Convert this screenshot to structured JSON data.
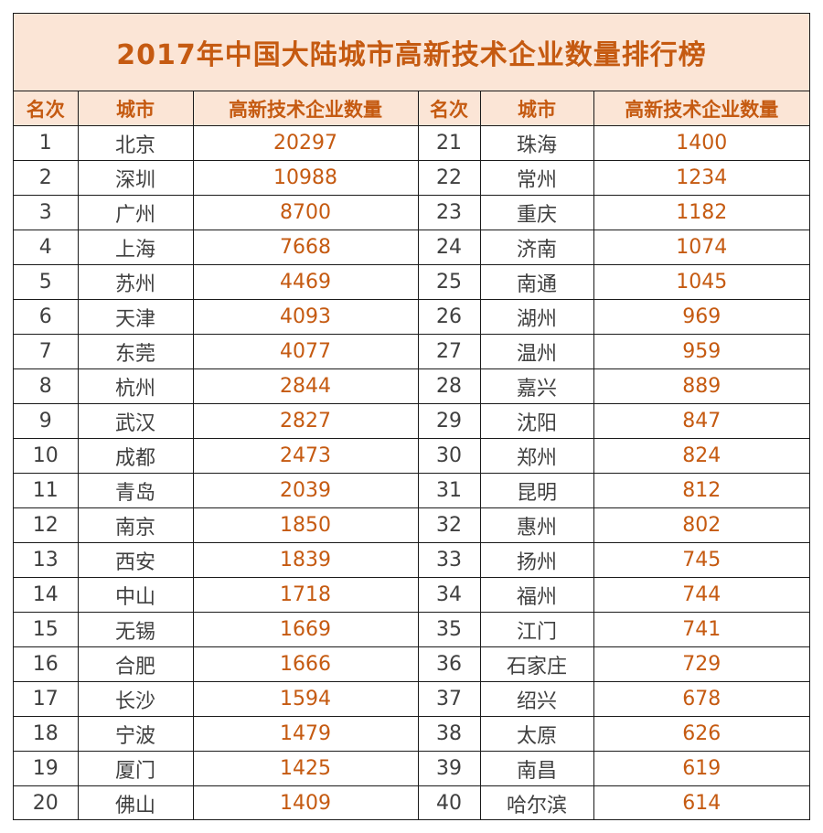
{
  "title": "2017年中国大陆城市高新技术企业数量排行榜",
  "headers": {
    "rank": "名次",
    "city": "城市",
    "count": "高新技术企业数量"
  },
  "colors": {
    "accent": "#c55a11",
    "header_bg": "#fbe5d6",
    "text": "#404040"
  },
  "chart_data": {
    "type": "table",
    "title": "2017年中国大陆城市高新技术企业数量排行榜",
    "columns": [
      "名次",
      "城市",
      "高新技术企业数量"
    ],
    "rows": [
      {
        "rank": "1",
        "city": "北京",
        "count": "20297"
      },
      {
        "rank": "2",
        "city": "深圳",
        "count": "10988"
      },
      {
        "rank": "3",
        "city": "广州",
        "count": "8700"
      },
      {
        "rank": "4",
        "city": "上海",
        "count": "7668"
      },
      {
        "rank": "5",
        "city": "苏州",
        "count": "4469"
      },
      {
        "rank": "6",
        "city": "天津",
        "count": "4093"
      },
      {
        "rank": "7",
        "city": "东莞",
        "count": "4077"
      },
      {
        "rank": "8",
        "city": "杭州",
        "count": "2844"
      },
      {
        "rank": "9",
        "city": "武汉",
        "count": "2827"
      },
      {
        "rank": "10",
        "city": "成都",
        "count": "2473"
      },
      {
        "rank": "11",
        "city": "青岛",
        "count": "2039"
      },
      {
        "rank": "12",
        "city": "南京",
        "count": "1850"
      },
      {
        "rank": "13",
        "city": "西安",
        "count": "1839"
      },
      {
        "rank": "14",
        "city": "中山",
        "count": "1718"
      },
      {
        "rank": "15",
        "city": "无锡",
        "count": "1669"
      },
      {
        "rank": "16",
        "city": "合肥",
        "count": "1666"
      },
      {
        "rank": "17",
        "city": "长沙",
        "count": "1594"
      },
      {
        "rank": "18",
        "city": "宁波",
        "count": "1479"
      },
      {
        "rank": "19",
        "city": "厦门",
        "count": "1425"
      },
      {
        "rank": "20",
        "city": "佛山",
        "count": "1409"
      },
      {
        "rank": "21",
        "city": "珠海",
        "count": "1400"
      },
      {
        "rank": "22",
        "city": "常州",
        "count": "1234"
      },
      {
        "rank": "23",
        "city": "重庆",
        "count": "1182"
      },
      {
        "rank": "24",
        "city": "济南",
        "count": "1074"
      },
      {
        "rank": "25",
        "city": "南通",
        "count": "1045"
      },
      {
        "rank": "26",
        "city": "湖州",
        "count": "969"
      },
      {
        "rank": "27",
        "city": "温州",
        "count": "959"
      },
      {
        "rank": "28",
        "city": "嘉兴",
        "count": "889"
      },
      {
        "rank": "29",
        "city": "沈阳",
        "count": "847"
      },
      {
        "rank": "30",
        "city": "郑州",
        "count": "824"
      },
      {
        "rank": "31",
        "city": "昆明",
        "count": "812"
      },
      {
        "rank": "32",
        "city": "惠州",
        "count": "802"
      },
      {
        "rank": "33",
        "city": "扬州",
        "count": "745"
      },
      {
        "rank": "34",
        "city": "福州",
        "count": "744"
      },
      {
        "rank": "35",
        "city": "江门",
        "count": "741"
      },
      {
        "rank": "36",
        "city": "石家庄",
        "count": "729"
      },
      {
        "rank": "37",
        "city": "绍兴",
        "count": "678"
      },
      {
        "rank": "38",
        "city": "太原",
        "count": "626"
      },
      {
        "rank": "39",
        "city": "南昌",
        "count": "619"
      },
      {
        "rank": "40",
        "city": "哈尔滨",
        "count": "614"
      }
    ]
  }
}
